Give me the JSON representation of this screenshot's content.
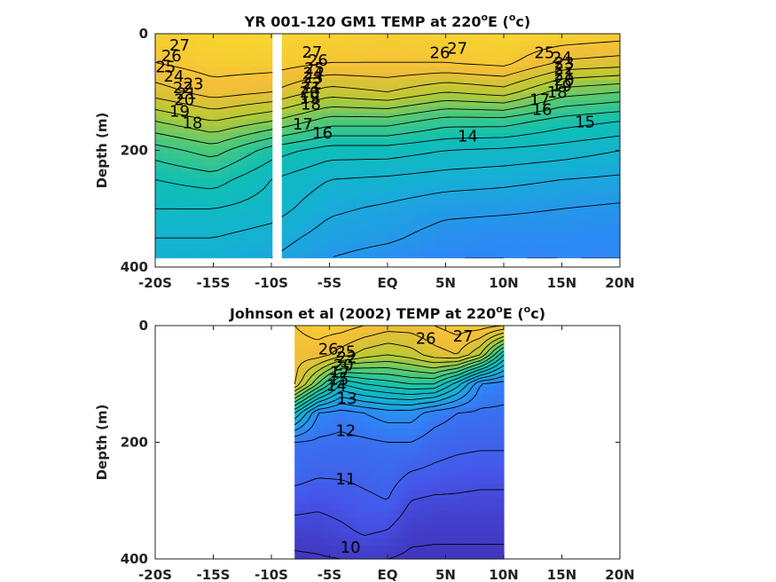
{
  "chart_data": [
    {
      "type": "heatmap",
      "title": "YR 001-120 GM1 TEMP at 220",
      "title_sup": "o",
      "title_tail": "E (",
      "title_unit_sup": "o",
      "title_unit_tail": "c)",
      "ylabel": "Depth (m)",
      "xlim": [
        -20,
        20
      ],
      "ylim": [
        400,
        0
      ],
      "x_ticks": [
        -20,
        -15,
        -10,
        -5,
        0,
        5,
        10,
        15,
        20
      ],
      "x_tick_labels": [
        "-20S",
        "-15S",
        "-10S",
        "-5S",
        "EQ",
        "5N",
        "10N",
        "15N",
        "20N"
      ],
      "y_ticks": [
        0,
        200,
        400
      ],
      "y_tick_labels": [
        "0",
        "200",
        "400"
      ],
      "data_extent": {
        "x": [
          -20,
          20
        ],
        "y_max": 385
      },
      "gap_x": [
        -9.9,
        -9.1
      ],
      "colormap": {
        "min": 9,
        "max": 29
      },
      "field": {
        "x": [
          -20,
          -15,
          -10,
          -5,
          0,
          5,
          10,
          15,
          20
        ],
        "depths": [
          0,
          50,
          100,
          150,
          200,
          250,
          300,
          350,
          385
        ],
        "values": [
          [
            27.5,
            28.0,
            28.0,
            27.8,
            27.5,
            27.8,
            28.0,
            27.8,
            27.5
          ],
          [
            27.0,
            27.5,
            27.5,
            27.0,
            27.0,
            27.0,
            27.3,
            25.8,
            25.5
          ],
          [
            25.5,
            26.5,
            26.0,
            24.5,
            25.0,
            24.0,
            24.5,
            22.5,
            22.0
          ],
          [
            23.0,
            24.0,
            23.0,
            21.5,
            21.5,
            20.5,
            20.5,
            19.5,
            19.0
          ],
          [
            20.5,
            21.5,
            19.5,
            18.5,
            18.5,
            18.0,
            17.8,
            17.5,
            17.0
          ],
          [
            19.0,
            19.5,
            18.0,
            17.0,
            16.8,
            16.5,
            16.3,
            16.0,
            15.8
          ],
          [
            18.0,
            18.0,
            17.5,
            16.2,
            15.8,
            15.3,
            15.2,
            15.0,
            14.8
          ],
          [
            17.0,
            17.0,
            16.5,
            15.5,
            15.2,
            14.5,
            14.3,
            14.3,
            14.2
          ],
          [
            16.5,
            16.5,
            16.0,
            15.0,
            14.5,
            14.0,
            14.0,
            14.0,
            14.0
          ]
        ]
      },
      "contour_labels": [
        {
          "text": "27",
          "x": -17.9,
          "depth": 20
        },
        {
          "text": "26",
          "x": -18.6,
          "depth": 38
        },
        {
          "text": "25",
          "x": -19.1,
          "depth": 57
        },
        {
          "text": "24",
          "x": -18.4,
          "depth": 73
        },
        {
          "text": "23",
          "x": -16.7,
          "depth": 86
        },
        {
          "text": "22",
          "x": -17.6,
          "depth": 93
        },
        {
          "text": "21",
          "x": -17.3,
          "depth": 103
        },
        {
          "text": "20",
          "x": -17.5,
          "depth": 113
        },
        {
          "text": "19",
          "x": -17.9,
          "depth": 133
        },
        {
          "text": "18",
          "x": -16.8,
          "depth": 153
        },
        {
          "text": "27",
          "x": -6.5,
          "depth": 32
        },
        {
          "text": "26",
          "x": -6.0,
          "depth": 46
        },
        {
          "text": "25",
          "x": -6.3,
          "depth": 59
        },
        {
          "text": "24",
          "x": -6.4,
          "depth": 68
        },
        {
          "text": "23",
          "x": -6.4,
          "depth": 75
        },
        {
          "text": "22",
          "x": -6.5,
          "depth": 85
        },
        {
          "text": "21",
          "x": -6.6,
          "depth": 93
        },
        {
          "text": "20",
          "x": -6.7,
          "depth": 100
        },
        {
          "text": "19",
          "x": -6.7,
          "depth": 110
        },
        {
          "text": "18",
          "x": -6.6,
          "depth": 121
        },
        {
          "text": "17",
          "x": -7.3,
          "depth": 155
        },
        {
          "text": "16",
          "x": -5.6,
          "depth": 170
        },
        {
          "text": "27",
          "x": 6.0,
          "depth": 25
        },
        {
          "text": "26",
          "x": 4.5,
          "depth": 33
        },
        {
          "text": "25",
          "x": 13.5,
          "depth": 33
        },
        {
          "text": "24",
          "x": 15.0,
          "depth": 41
        },
        {
          "text": "23",
          "x": 15.2,
          "depth": 50
        },
        {
          "text": "22",
          "x": 15.2,
          "depth": 60
        },
        {
          "text": "21",
          "x": 15.2,
          "depth": 70
        },
        {
          "text": "20",
          "x": 15.2,
          "depth": 80
        },
        {
          "text": "19",
          "x": 15.0,
          "depth": 90
        },
        {
          "text": "18",
          "x": 14.6,
          "depth": 100
        },
        {
          "text": "17",
          "x": 13.1,
          "depth": 113
        },
        {
          "text": "16",
          "x": 13.3,
          "depth": 130
        },
        {
          "text": "15",
          "x": 17.0,
          "depth": 151
        },
        {
          "text": "14",
          "x": 6.9,
          "depth": 176
        }
      ]
    },
    {
      "type": "heatmap",
      "title": "Johnson et al (2002) TEMP at 220",
      "title_sup": "o",
      "title_tail": "E (",
      "title_unit_sup": "o",
      "title_unit_tail": "c)",
      "ylabel": "Depth (m)",
      "xlim": [
        -20,
        20
      ],
      "ylim": [
        400,
        0
      ],
      "x_ticks": [
        -20,
        -15,
        -10,
        -5,
        0,
        5,
        10,
        15,
        20
      ],
      "x_tick_labels": [
        "-20S",
        "-15S",
        "-10S",
        "-5S",
        "EQ",
        "5N",
        "10N",
        "15N",
        "20N"
      ],
      "y_ticks": [
        0,
        200,
        400
      ],
      "y_tick_labels": [
        "0",
        "200",
        "400"
      ],
      "data_extent": {
        "x": [
          -8,
          10
        ],
        "y_max": 400
      },
      "colormap": {
        "min": 9,
        "max": 29
      },
      "field": {
        "x": [
          -8,
          -6,
          -4,
          -2,
          0,
          2,
          4,
          6,
          8,
          10
        ],
        "depths": [
          0,
          50,
          100,
          150,
          200,
          250,
          300,
          350,
          400
        ],
        "values": [
          [
            27.0,
            27.5,
            27.5,
            27.0,
            26.5,
            26.5,
            27.0,
            27.5,
            27.5,
            27.0
          ],
          [
            26.5,
            26.5,
            25.5,
            24.5,
            24.0,
            24.5,
            25.5,
            26.0,
            24.0,
            19.0
          ],
          [
            26.0,
            22.0,
            18.0,
            19.0,
            19.5,
            20.0,
            20.0,
            17.5,
            14.0,
            13.5
          ],
          [
            18.0,
            14.0,
            13.5,
            14.0,
            14.5,
            14.5,
            13.5,
            13.0,
            12.8,
            12.8
          ],
          [
            13.0,
            12.8,
            12.7,
            12.8,
            13.0,
            13.0,
            12.5,
            12.3,
            12.2,
            12.2
          ],
          [
            12.5,
            12.2,
            12.2,
            12.3,
            12.5,
            12.0,
            11.8,
            11.6,
            11.5,
            11.5
          ],
          [
            11.5,
            11.3,
            11.5,
            11.8,
            12.0,
            11.0,
            10.8,
            10.8,
            10.7,
            10.7
          ],
          [
            10.5,
            10.5,
            10.8,
            11.2,
            11.0,
            10.3,
            10.2,
            10.2,
            10.2,
            10.2
          ],
          [
            9.8,
            9.9,
            10.0,
            10.2,
            10.0,
            9.8,
            9.8,
            9.8,
            9.8,
            9.8
          ]
        ]
      },
      "contour_labels": [
        {
          "text": "26",
          "x": -5.1,
          "depth": 40
        },
        {
          "text": "27",
          "x": 6.5,
          "depth": 18
        },
        {
          "text": "26",
          "x": 3.3,
          "depth": 22
        },
        {
          "text": "25",
          "x": -3.6,
          "depth": 45
        },
        {
          "text": "22",
          "x": -3.5,
          "depth": 55
        },
        {
          "text": "20",
          "x": -3.8,
          "depth": 68
        },
        {
          "text": "17",
          "x": -4.1,
          "depth": 80
        },
        {
          "text": "15",
          "x": -4.2,
          "depth": 92
        },
        {
          "text": "14",
          "x": -4.4,
          "depth": 103
        },
        {
          "text": "13",
          "x": -3.5,
          "depth": 125
        },
        {
          "text": "12",
          "x": -3.6,
          "depth": 180
        },
        {
          "text": "11",
          "x": -3.6,
          "depth": 263
        },
        {
          "text": "10",
          "x": -3.2,
          "depth": 380
        }
      ]
    }
  ]
}
